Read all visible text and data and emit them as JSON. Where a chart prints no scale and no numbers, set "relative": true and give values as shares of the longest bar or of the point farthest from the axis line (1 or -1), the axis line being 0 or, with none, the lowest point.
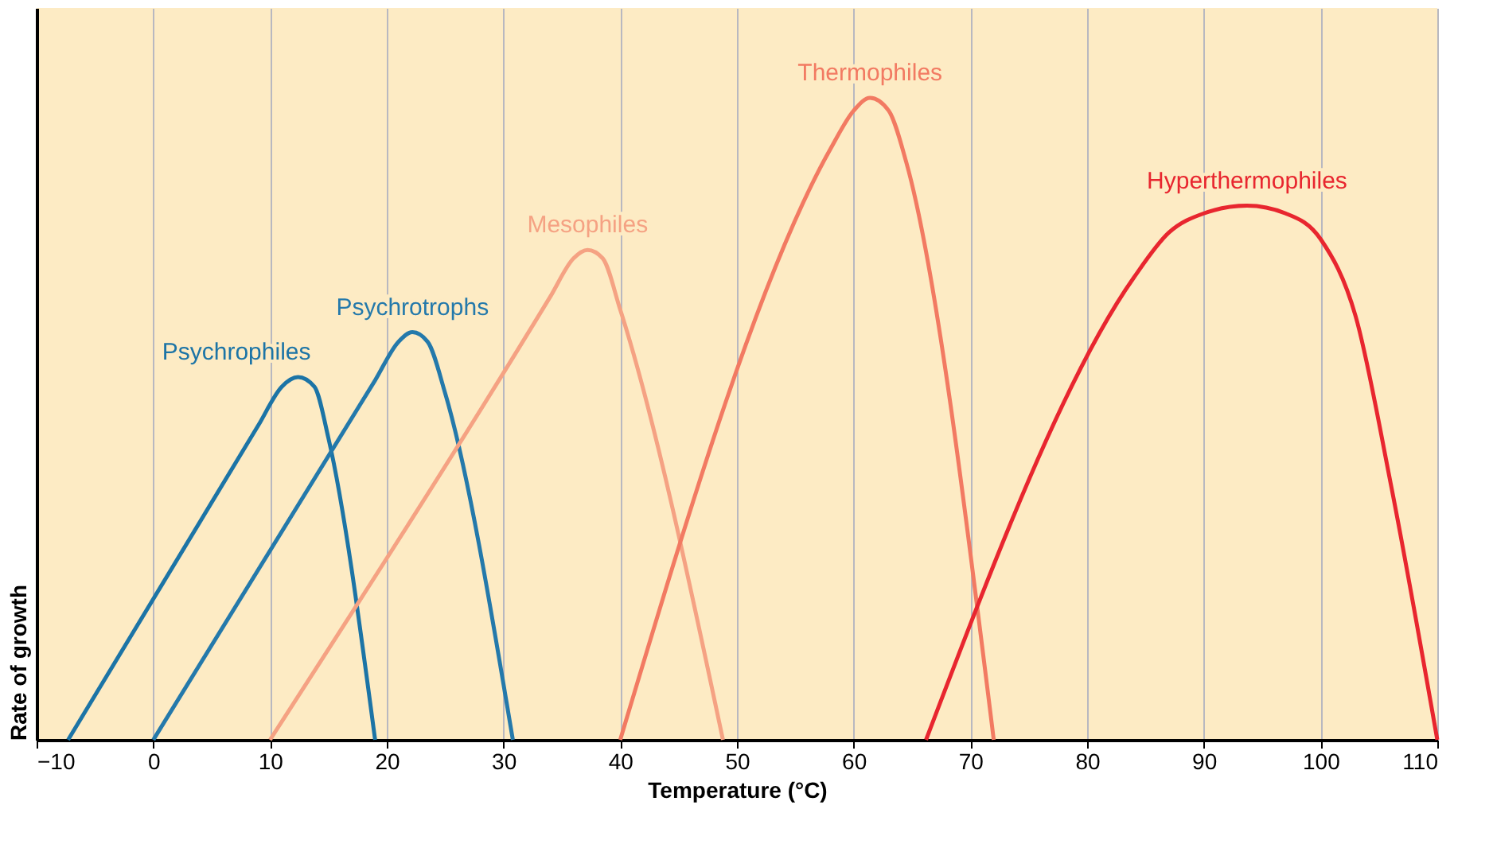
{
  "chart_data": {
    "type": "line",
    "relative": true,
    "xlabel": "Temperature (°C)",
    "ylabel": "Rate of growth",
    "xlim": [
      -10,
      110
    ],
    "xticks": [
      {
        "value": -10,
        "label": "−10"
      },
      0,
      10,
      20,
      30,
      40,
      50,
      60,
      70,
      80,
      90,
      100,
      110
    ],
    "grid": "x",
    "legend": false,
    "line_style": "solid",
    "marker": "none",
    "series": [
      {
        "name": "Psychrophiles",
        "color": "#1c74a6",
        "x": [
          -7.3,
          9,
          11,
          12.4,
          13.8,
          15,
          19
        ],
        "values": [
          0,
          0.49,
          0.55,
          0.565,
          0.55,
          0.47,
          0
        ]
      },
      {
        "name": "Psychrotrophs",
        "color": "#2479ab",
        "x": [
          0,
          19,
          21,
          22.2,
          23.5,
          25,
          30.8
        ],
        "values": [
          0,
          0.56,
          0.62,
          0.635,
          0.62,
          0.54,
          0
        ]
      },
      {
        "name": "Mesophiles",
        "color": "#f5a283",
        "x": [
          10,
          34,
          36,
          37.2,
          38.5,
          40,
          48.8
        ],
        "values": [
          0,
          0.69,
          0.75,
          0.763,
          0.75,
          0.67,
          0
        ]
      },
      {
        "name": "Thermophiles",
        "color": "#f27a62",
        "x": [
          40,
          58,
          60,
          61.4,
          63,
          64.5,
          72
        ],
        "values": [
          0,
          0.92,
          0.98,
          1.0,
          0.98,
          0.9,
          0
        ]
      },
      {
        "name": "Hyperthermophiles",
        "color": "#e8262f",
        "x": [
          66.2,
          84,
          87,
          90,
          93.7,
          97,
          100,
          103,
          106,
          110
        ],
        "values": [
          0,
          0.72,
          0.79,
          0.82,
          0.832,
          0.82,
          0.78,
          0.66,
          0.4,
          0
        ]
      }
    ]
  }
}
